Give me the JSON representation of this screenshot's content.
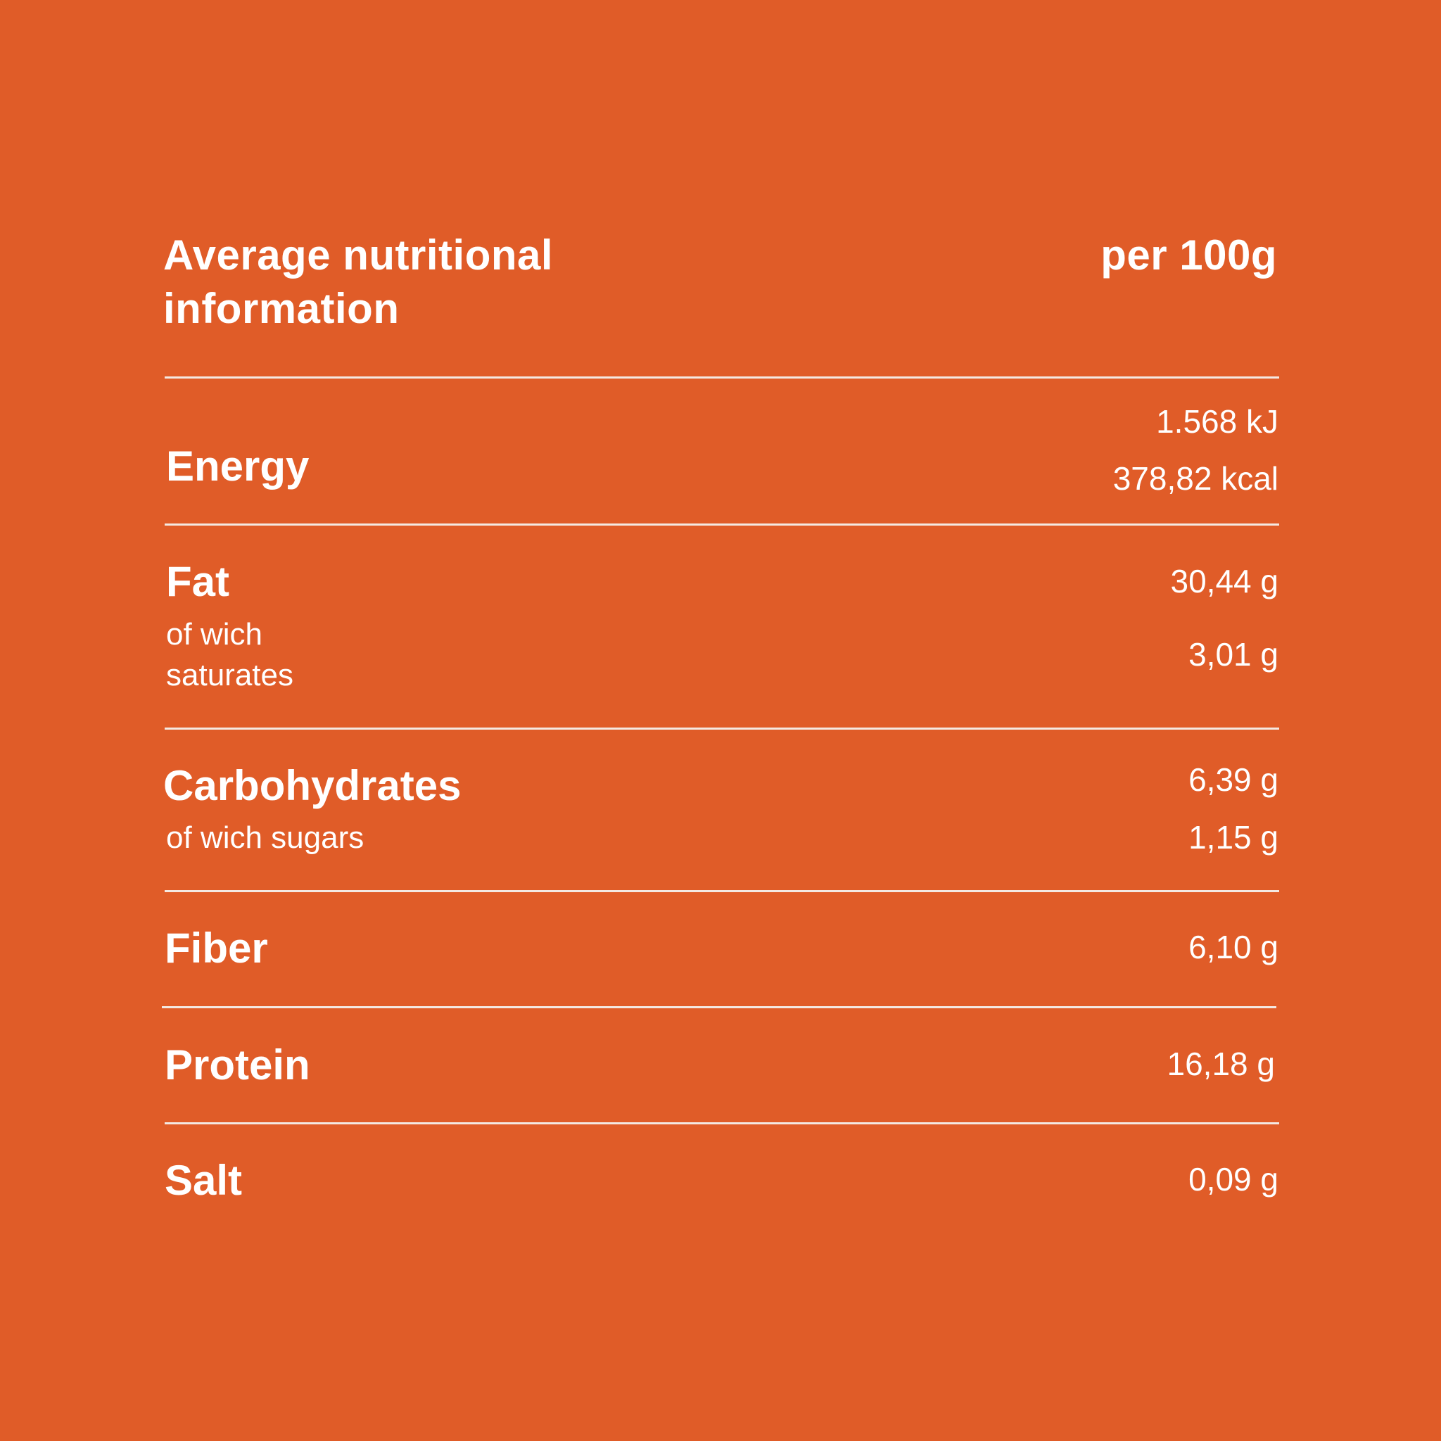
{
  "header": {
    "title_line1": "Average nutritional",
    "title_line2": "information",
    "per_label": "per 100g"
  },
  "rows": {
    "energy": {
      "name": "Energy",
      "values": [
        "1.568 kJ",
        "378,82 kcal"
      ]
    },
    "fat": {
      "name": "Fat",
      "sub_line1": "of wich",
      "sub_line2": "saturates",
      "values": [
        "30,44 g",
        "3,01 g"
      ]
    },
    "carbohydrates": {
      "name": "Carbohydrates",
      "sub": "of wich sugars",
      "values": [
        "6,39 g",
        "1,15 g"
      ]
    },
    "fiber": {
      "name": "Fiber",
      "value": "6,10 g"
    },
    "protein": {
      "name": "Protein",
      "value": "16,18 g"
    },
    "salt": {
      "name": "Salt",
      "value": "0,09 g"
    }
  },
  "colors": {
    "background": "#e05c28",
    "text": "#ffffff"
  }
}
